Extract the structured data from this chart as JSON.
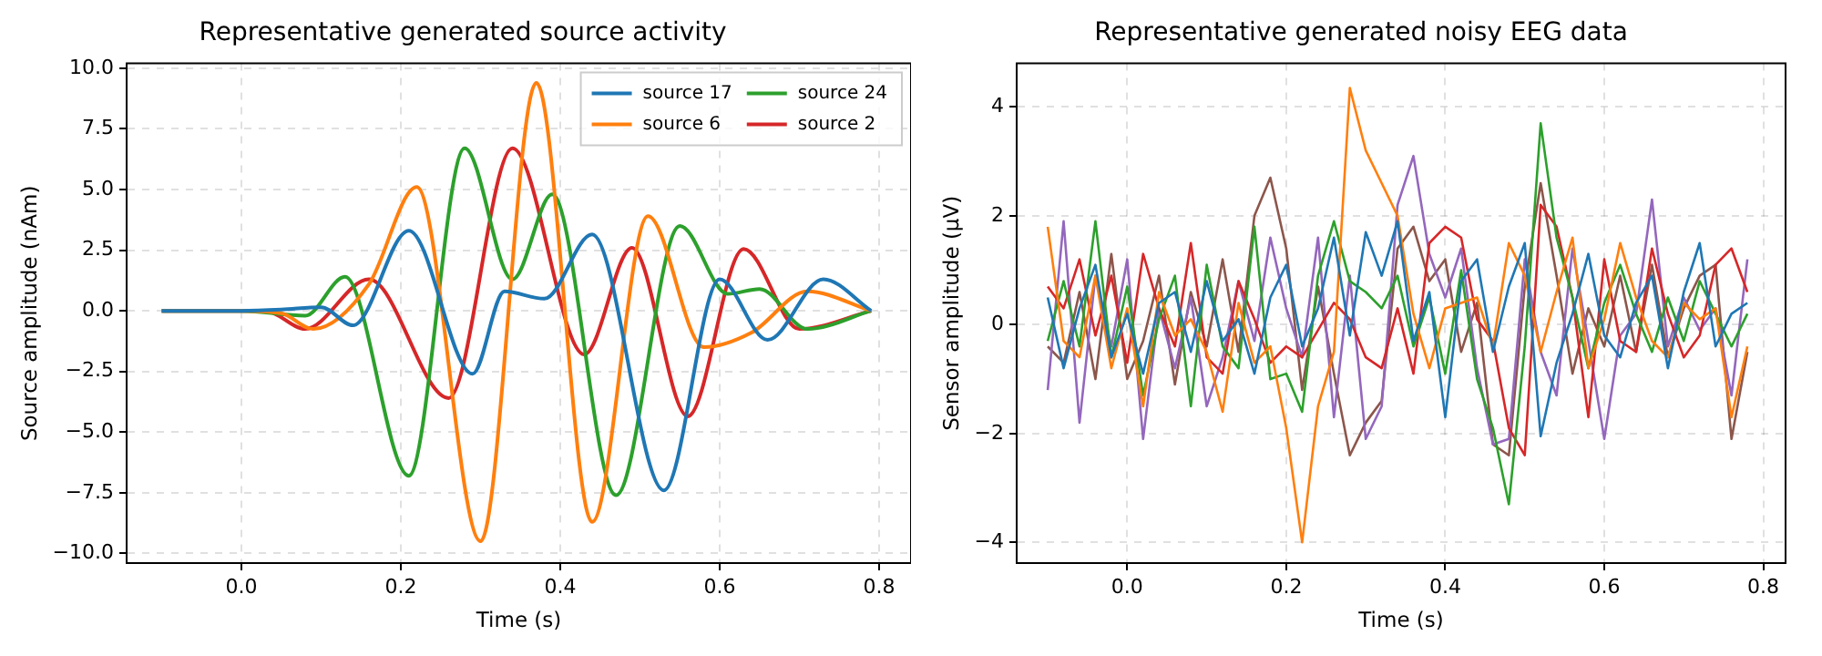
{
  "chart_data": [
    {
      "type": "line",
      "title": "Representative generated source activity",
      "xlabel": "Time (s)",
      "ylabel": "Source amplitude (nAm)",
      "xlim": [
        -0.144,
        0.84
      ],
      "ylim": [
        -10.4,
        10.2
      ],
      "xticks": [
        {
          "value": 0,
          "label": "0.0"
        },
        {
          "value": 0.2,
          "label": "0.2"
        },
        {
          "value": 0.4,
          "label": "0.4"
        },
        {
          "value": 0.6,
          "label": "0.6"
        },
        {
          "value": 0.8,
          "label": "0.8"
        }
      ],
      "yticks": [
        {
          "value": -10,
          "label": "−10.0"
        },
        {
          "value": -7.5,
          "label": "−7.5"
        },
        {
          "value": -5,
          "label": "−5.0"
        },
        {
          "value": -2.5,
          "label": "−2.5"
        },
        {
          "value": 0,
          "label": "0.0"
        },
        {
          "value": 2.5,
          "label": "2.5"
        },
        {
          "value": 5,
          "label": "5.0"
        },
        {
          "value": 7.5,
          "label": "7.5"
        },
        {
          "value": 10,
          "label": "10.0"
        }
      ],
      "grid": true,
      "legend": "top right",
      "series": [
        {
          "name": "source 17",
          "color": "#1f77b4",
          "x": [
            -0.1,
            0.0,
            0.05,
            0.1,
            0.14,
            0.21,
            0.29,
            0.33,
            0.38,
            0.44,
            0.53,
            0.6,
            0.66,
            0.73,
            0.79
          ],
          "values": [
            0,
            0,
            0.05,
            0.15,
            -0.6,
            3.3,
            -2.6,
            0.8,
            0.5,
            3.15,
            -7.4,
            1.3,
            -1.2,
            1.3,
            0
          ]
        },
        {
          "name": "source 6",
          "color": "#ff7f0e",
          "x": [
            -0.1,
            0.0,
            0.05,
            0.09,
            0.16,
            0.22,
            0.3,
            0.37,
            0.44,
            0.51,
            0.58,
            0.64,
            0.71,
            0.79
          ],
          "values": [
            0,
            0,
            -0.1,
            -0.75,
            1.1,
            5.1,
            -9.5,
            9.4,
            -8.7,
            3.9,
            -1.5,
            -0.9,
            0.8,
            0
          ]
        },
        {
          "name": "source 24",
          "color": "#2ca02c",
          "x": [
            -0.1,
            0.0,
            0.08,
            0.13,
            0.21,
            0.28,
            0.34,
            0.39,
            0.47,
            0.55,
            0.61,
            0.65,
            0.71,
            0.79
          ],
          "values": [
            0,
            0,
            -0.2,
            1.4,
            -6.8,
            6.7,
            1.3,
            4.8,
            -7.6,
            3.5,
            0.7,
            0.9,
            -0.75,
            0
          ]
        },
        {
          "name": "source 2",
          "color": "#d62728",
          "x": [
            -0.1,
            0.0,
            0.03,
            0.08,
            0.16,
            0.26,
            0.34,
            0.43,
            0.49,
            0.56,
            0.63,
            0.7,
            0.79
          ],
          "values": [
            0,
            0,
            0,
            -0.75,
            1.3,
            -3.6,
            6.7,
            -1.8,
            2.6,
            -4.35,
            2.55,
            -0.75,
            0
          ]
        }
      ]
    },
    {
      "type": "line",
      "title": "Representative generated noisy EEG data",
      "xlabel": "Time (s)",
      "ylabel": "Sensor amplitude (µV)",
      "xlim": [
        -0.139,
        0.828
      ],
      "ylim": [
        -4.38,
        4.8
      ],
      "xticks": [
        {
          "value": 0,
          "label": "0.0"
        },
        {
          "value": 0.2,
          "label": "0.2"
        },
        {
          "value": 0.4,
          "label": "0.4"
        },
        {
          "value": 0.6,
          "label": "0.6"
        },
        {
          "value": 0.8,
          "label": "0.8"
        }
      ],
      "yticks": [
        {
          "value": -4,
          "label": "−4"
        },
        {
          "value": -2,
          "label": "−2"
        },
        0,
        2,
        4
      ],
      "grid": true,
      "x": [
        -0.1,
        -0.08,
        -0.06,
        -0.04,
        -0.02,
        0.0,
        0.02,
        0.04,
        0.06,
        0.08,
        0.1,
        0.12,
        0.14,
        0.16,
        0.18,
        0.2,
        0.22,
        0.24,
        0.26,
        0.28,
        0.3,
        0.32,
        0.34,
        0.36,
        0.38,
        0.4,
        0.42,
        0.44,
        0.46,
        0.48,
        0.5,
        0.52,
        0.54,
        0.56,
        0.58,
        0.6,
        0.62,
        0.64,
        0.66,
        0.68,
        0.7,
        0.72,
        0.74,
        0.76,
        0.78
      ],
      "series": [
        {
          "color": "#1f77b4",
          "values": [
            0.5,
            -0.8,
            0.3,
            1.1,
            -0.6,
            0.2,
            -0.9,
            0.4,
            0.6,
            -0.5,
            0.8,
            -0.3,
            0.1,
            -0.9,
            0.5,
            1.1,
            -0.4,
            0.3,
            1.6,
            -0.2,
            1.7,
            0.9,
            1.9,
            -0.3,
            0.6,
            -1.7,
            0.8,
            1.2,
            -0.5,
            0.7,
            1.5,
            -2.05,
            -0.7,
            0.2,
            1.3,
            -0.2,
            -0.6,
            0.4,
            0.9,
            -0.8,
            0.6,
            1.5,
            -0.4,
            0.2,
            0.4
          ]
        },
        {
          "color": "#ff7f0e",
          "values": [
            1.8,
            -0.3,
            -0.6,
            0.9,
            -0.8,
            0.3,
            -1.5,
            0.6,
            -0.2,
            0.1,
            -0.5,
            -1.6,
            0.4,
            -0.7,
            -0.4,
            -1.9,
            -4.0,
            -1.5,
            -0.5,
            4.35,
            3.2,
            2.6,
            2.0,
            0.2,
            -0.8,
            0.3,
            0.4,
            0.5,
            -0.4,
            1.5,
            0.9,
            -0.5,
            0.6,
            1.6,
            -0.8,
            0.1,
            1.5,
            0.5,
            -0.3,
            -0.6,
            0.4,
            0.1,
            0.3,
            -1.7,
            -0.4
          ]
        },
        {
          "color": "#2ca02c",
          "values": [
            -0.3,
            0.8,
            -0.4,
            1.9,
            -0.6,
            0.7,
            -1.3,
            0.1,
            0.9,
            -1.5,
            1.1,
            -0.4,
            -0.8,
            1.8,
            -1.0,
            -0.9,
            -1.6,
            0.9,
            1.9,
            0.8,
            0.6,
            0.3,
            0.9,
            -0.4,
            0.5,
            -0.9,
            1.0,
            -1.0,
            -1.9,
            -3.3,
            -0.4,
            3.7,
            1.6,
            0.5,
            -0.8,
            0.4,
            1.1,
            0.2,
            -0.5,
            0.5,
            -0.3,
            0.8,
            0.2,
            -0.4,
            0.2
          ]
        },
        {
          "color": "#d62728",
          "values": [
            0.7,
            0.3,
            1.2,
            -0.2,
            0.9,
            -0.7,
            1.3,
            0.3,
            -0.4,
            1.5,
            -0.6,
            -0.9,
            0.8,
            0.1,
            -0.7,
            -0.4,
            -0.6,
            -0.1,
            0.4,
            0.1,
            -0.6,
            -0.8,
            0.3,
            -0.9,
            1.5,
            1.8,
            1.6,
            0.1,
            -0.3,
            -1.9,
            -2.4,
            2.2,
            1.8,
            0.5,
            -1.7,
            1.2,
            -0.3,
            -0.5,
            1.4,
            0.2,
            -0.6,
            -0.2,
            1.1,
            1.4,
            0.6
          ]
        },
        {
          "color": "#9467bd",
          "values": [
            -1.2,
            1.9,
            -1.8,
            0.9,
            -0.4,
            1.2,
            -2.1,
            0.3,
            -0.8,
            0.5,
            -1.5,
            -0.6,
            0.8,
            -0.3,
            1.6,
            0.3,
            -0.6,
            1.6,
            -1.7,
            0.9,
            -2.1,
            -1.5,
            2.2,
            3.1,
            1.3,
            0.5,
            1.4,
            -0.8,
            -2.2,
            -2.1,
            1.2,
            -0.5,
            -1.3,
            1.4,
            -0.3,
            -2.1,
            -0.2,
            0.2,
            2.3,
            -0.4,
            0.5,
            -0.1,
            0.3,
            -1.3,
            1.2
          ]
        },
        {
          "color": "#8c564b",
          "values": [
            -0.4,
            -0.7,
            0.6,
            -1.0,
            1.3,
            -1.0,
            -0.3,
            0.9,
            -1.1,
            0.6,
            -0.4,
            1.2,
            -0.5,
            2.0,
            2.7,
            1.4,
            -1.2,
            0.7,
            -0.9,
            -2.4,
            -1.8,
            -1.4,
            1.4,
            1.8,
            0.8,
            1.2,
            -0.5,
            0.4,
            -2.2,
            -2.4,
            0.7,
            2.6,
            0.9,
            -0.9,
            0.3,
            -0.4,
            0.9,
            -0.5,
            1.1,
            -0.6,
            0.3,
            0.9,
            1.1,
            -2.1,
            -0.5
          ]
        }
      ]
    }
  ]
}
